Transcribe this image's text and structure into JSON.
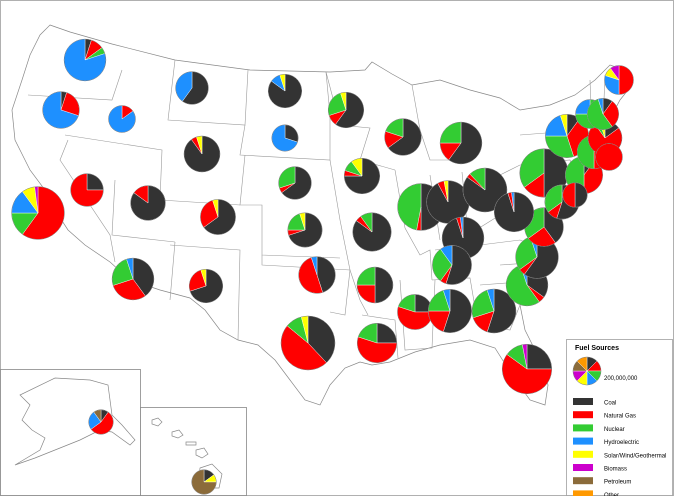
{
  "legend": {
    "title": "Fuel Sources",
    "size_label": "200,000,000",
    "fuels": [
      {
        "label": "Coal",
        "color": "#333333"
      },
      {
        "label": "Natural Gas",
        "color": "#ff0000"
      },
      {
        "label": "Nuclear",
        "color": "#33cc33"
      },
      {
        "label": "Hydroelectric",
        "color": "#1e90ff"
      },
      {
        "label": "Solar/Wind/Geothermal",
        "color": "#ffff00"
      },
      {
        "label": "Biomass",
        "color": "#cc00cc"
      },
      {
        "label": "Petroleum",
        "color": "#8b6b3a"
      },
      {
        "label": "Other",
        "color": "#ff9900"
      }
    ]
  },
  "states": [
    {
      "id": "WA",
      "mix": [
        0.05,
        0.1,
        0.05,
        0.8,
        0,
        0,
        0,
        0
      ],
      "size": 0.55
    },
    {
      "id": "OR",
      "mix": [
        0.05,
        0.25,
        0,
        0.7,
        0,
        0,
        0,
        0
      ],
      "size": 0.4
    },
    {
      "id": "ID",
      "mix": [
        0,
        0.15,
        0,
        0.85,
        0,
        0,
        0,
        0
      ],
      "size": 0.18
    },
    {
      "id": "CA",
      "mix": [
        0,
        0.6,
        0.15,
        0.15,
        0.08,
        0.02,
        0,
        0
      ],
      "size": 0.95
    },
    {
      "id": "NV",
      "mix": [
        0.25,
        0.75,
        0,
        0,
        0,
        0,
        0,
        0
      ],
      "size": 0.3
    },
    {
      "id": "UT",
      "mix": [
        0.85,
        0.15,
        0,
        0,
        0,
        0,
        0,
        0
      ],
      "size": 0.35
    },
    {
      "id": "AZ",
      "mix": [
        0.4,
        0.3,
        0.25,
        0.05,
        0,
        0,
        0,
        0
      ],
      "size": 0.55
    },
    {
      "id": "MT",
      "mix": [
        0.6,
        0,
        0,
        0.4,
        0,
        0,
        0,
        0
      ],
      "size": 0.3
    },
    {
      "id": "WY",
      "mix": [
        0.9,
        0.05,
        0,
        0,
        0.05,
        0,
        0,
        0
      ],
      "size": 0.38
    },
    {
      "id": "CO",
      "mix": [
        0.65,
        0.3,
        0,
        0,
        0.05,
        0,
        0,
        0
      ],
      "size": 0.36
    },
    {
      "id": "NM",
      "mix": [
        0.7,
        0.25,
        0,
        0,
        0.05,
        0,
        0,
        0
      ],
      "size": 0.32
    },
    {
      "id": "ND",
      "mix": [
        0.85,
        0,
        0,
        0.1,
        0.05,
        0,
        0,
        0
      ],
      "size": 0.32
    },
    {
      "id": "SD",
      "mix": [
        0.3,
        0,
        0,
        0.7,
        0,
        0,
        0,
        0
      ],
      "size": 0.17
    },
    {
      "id": "NE",
      "mix": [
        0.65,
        0.05,
        0.3,
        0,
        0,
        0,
        0,
        0
      ],
      "size": 0.3
    },
    {
      "id": "KS",
      "mix": [
        0.7,
        0.05,
        0.2,
        0,
        0.05,
        0,
        0,
        0
      ],
      "size": 0.34
    },
    {
      "id": "OK",
      "mix": [
        0.45,
        0.5,
        0,
        0.05,
        0,
        0,
        0,
        0
      ],
      "size": 0.4
    },
    {
      "id": "TX",
      "mix": [
        0.38,
        0.48,
        0.1,
        0,
        0.04,
        0,
        0,
        0
      ],
      "size": 1.0
    },
    {
      "id": "MN",
      "mix": [
        0.6,
        0.1,
        0.25,
        0,
        0.05,
        0,
        0,
        0
      ],
      "size": 0.37
    },
    {
      "id": "IA",
      "mix": [
        0.75,
        0.05,
        0.1,
        0,
        0.1,
        0,
        0,
        0
      ],
      "size": 0.37
    },
    {
      "id": "MO",
      "mix": [
        0.85,
        0.05,
        0.1,
        0,
        0,
        0,
        0,
        0
      ],
      "size": 0.45
    },
    {
      "id": "AR",
      "mix": [
        0.5,
        0.25,
        0.25,
        0,
        0,
        0,
        0,
        0
      ],
      "size": 0.38
    },
    {
      "id": "LA",
      "mix": [
        0.25,
        0.55,
        0.2,
        0,
        0,
        0,
        0,
        0
      ],
      "size": 0.48
    },
    {
      "id": "WI",
      "mix": [
        0.65,
        0.15,
        0.2,
        0,
        0,
        0,
        0,
        0
      ],
      "size": 0.4
    },
    {
      "id": "IL",
      "mix": [
        0.5,
        0.03,
        0.47,
        0,
        0,
        0,
        0,
        0
      ],
      "size": 0.72
    },
    {
      "id": "MI",
      "mix": [
        0.6,
        0.15,
        0.25,
        0,
        0,
        0,
        0,
        0
      ],
      "size": 0.55
    },
    {
      "id": "IN",
      "mix": [
        0.92,
        0.05,
        0,
        0,
        0.03,
        0,
        0,
        0
      ],
      "size": 0.58
    },
    {
      "id": "OH",
      "mix": [
        0.85,
        0.03,
        0.12,
        0,
        0,
        0,
        0,
        0
      ],
      "size": 0.62
    },
    {
      "id": "KY",
      "mix": [
        0.95,
        0.03,
        0,
        0.02,
        0,
        0,
        0,
        0
      ],
      "size": 0.55
    },
    {
      "id": "TN",
      "mix": [
        0.55,
        0.05,
        0.3,
        0.1,
        0,
        0,
        0,
        0
      ],
      "size": 0.47
    },
    {
      "id": "MS",
      "mix": [
        0.25,
        0.55,
        0.2,
        0,
        0,
        0,
        0,
        0
      ],
      "size": 0.36
    },
    {
      "id": "AL",
      "mix": [
        0.55,
        0.2,
        0.2,
        0.05,
        0,
        0,
        0,
        0
      ],
      "size": 0.6
    },
    {
      "id": "GA",
      "mix": [
        0.55,
        0.15,
        0.25,
        0.05,
        0,
        0,
        0,
        0
      ],
      "size": 0.62
    },
    {
      "id": "FL",
      "mix": [
        0.25,
        0.6,
        0.12,
        0,
        0,
        0.03,
        0,
        0
      ],
      "size": 0.82
    },
    {
      "id": "SC",
      "mix": [
        0.35,
        0.05,
        0.55,
        0.05,
        0,
        0,
        0,
        0
      ],
      "size": 0.55
    },
    {
      "id": "NC",
      "mix": [
        0.6,
        0.05,
        0.3,
        0.05,
        0,
        0,
        0,
        0
      ],
      "size": 0.58
    },
    {
      "id": "VA",
      "mix": [
        0.4,
        0.25,
        0.35,
        0,
        0,
        0,
        0,
        0
      ],
      "size": 0.46
    },
    {
      "id": "WV",
      "mix": [
        0.95,
        0.03,
        0,
        0.02,
        0,
        0,
        0,
        0
      ],
      "size": 0.48
    },
    {
      "id": "PA",
      "mix": [
        0.5,
        0.15,
        0.35,
        0,
        0,
        0,
        0,
        0
      ],
      "size": 0.78
    },
    {
      "id": "NY",
      "mix": [
        0.1,
        0.35,
        0.3,
        0.2,
        0.05,
        0,
        0,
        0
      ],
      "size": 0.6
    },
    {
      "id": "NJ",
      "mix": [
        0.1,
        0.4,
        0.5,
        0,
        0,
        0,
        0,
        0
      ],
      "size": 0.42
    },
    {
      "id": "MD",
      "mix": [
        0.55,
        0.1,
        0.35,
        0,
        0,
        0,
        0,
        0
      ],
      "size": 0.34
    },
    {
      "id": "DE",
      "mix": [
        0.5,
        0.5,
        0,
        0,
        0,
        0,
        0,
        0
      ],
      "size": 0.14
    },
    {
      "id": "CT",
      "mix": [
        0.05,
        0.45,
        0.5,
        0,
        0,
        0,
        0,
        0
      ],
      "size": 0.32
    },
    {
      "id": "MA",
      "mix": [
        0.15,
        0.75,
        0.05,
        0,
        0.05,
        0,
        0,
        0
      ],
      "size": 0.33
    },
    {
      "id": "RI",
      "mix": [
        0,
        1.0,
        0,
        0,
        0,
        0,
        0,
        0
      ],
      "size": 0.18
    },
    {
      "id": "VT",
      "mix": [
        0,
        0,
        0.75,
        0.25,
        0,
        0,
        0,
        0
      ],
      "size": 0.22
    },
    {
      "id": "NH",
      "mix": [
        0.1,
        0.3,
        0.55,
        0.05,
        0,
        0,
        0,
        0
      ],
      "size": 0.27
    },
    {
      "id": "ME",
      "mix": [
        0,
        0.5,
        0,
        0.3,
        0.1,
        0.1,
        0,
        0
      ],
      "size": 0.22
    },
    {
      "id": "AK",
      "mix": [
        0.1,
        0.55,
        0,
        0.25,
        0,
        0,
        0.1,
        0
      ],
      "size": 0.14
    },
    {
      "id": "HI",
      "mix": [
        0.15,
        0,
        0,
        0,
        0.1,
        0,
        0.75,
        0
      ],
      "size": 0.14
    }
  ]
}
